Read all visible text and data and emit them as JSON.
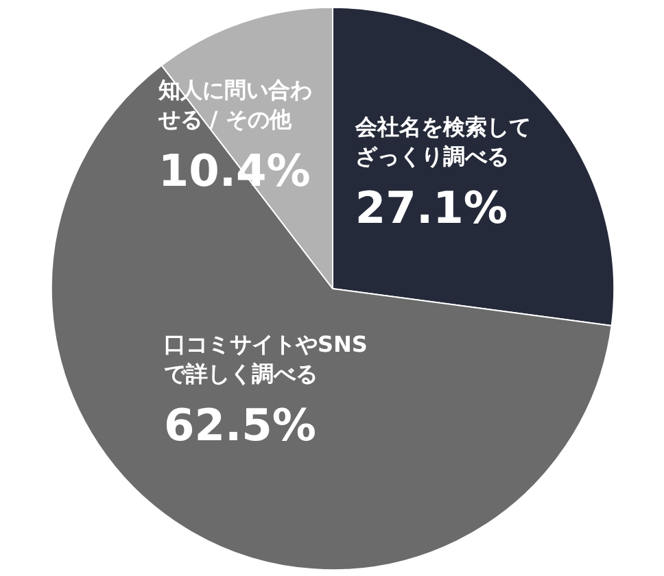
{
  "chart_data": {
    "type": "pie",
    "categories": [
      "会社名を検索してざっくり調べる",
      "口コミサイトやSNSで詳しく調べる",
      "知人に問い合わせる / その他"
    ],
    "values": [
      27.1,
      62.5,
      10.4
    ],
    "colors": [
      "#252a3a",
      "#6b6b6b",
      "#b2b2b2"
    ],
    "value_labels": [
      "27.1%",
      "62.5%",
      "10.4%"
    ]
  }
}
